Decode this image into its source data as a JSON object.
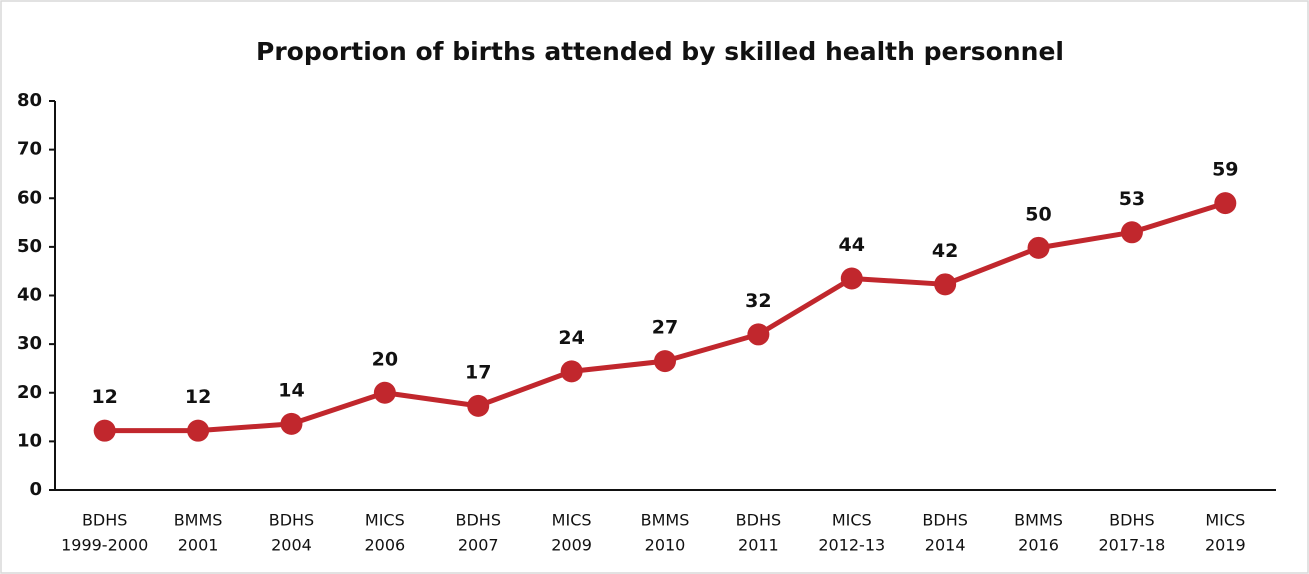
{
  "chart_data": {
    "type": "line",
    "title": "Proportion of births attended by skilled health personnel",
    "categories": [
      [
        "BDHS",
        "1999-2000"
      ],
      [
        "BMMS",
        "2001"
      ],
      [
        "BDHS",
        "2004"
      ],
      [
        "MICS",
        "2006"
      ],
      [
        "BDHS",
        "2007"
      ],
      [
        "MICS",
        "2009"
      ],
      [
        "BMMS",
        "2010"
      ],
      [
        "BDHS",
        "2011"
      ],
      [
        "MICS",
        "2012-13"
      ],
      [
        "BDHS",
        "2014"
      ],
      [
        "BMMS",
        "2016"
      ],
      [
        "BDHS",
        "2017-18"
      ],
      [
        "MICS",
        "2019"
      ]
    ],
    "series": [
      {
        "color": "#c1272d",
        "values": [
          12.2,
          12.2,
          13.6,
          20,
          17.3,
          24.4,
          26.5,
          32,
          43.5,
          42.3,
          49.8,
          53,
          59
        ],
        "value_labels": [
          "12",
          "12",
          "14",
          "20",
          "17",
          "24",
          "27",
          "32",
          "44",
          "42",
          "50",
          "53",
          "59"
        ]
      }
    ],
    "ylim": [
      0,
      80
    ],
    "yticks": [
      0,
      10,
      20,
      30,
      40,
      50,
      60,
      70,
      80
    ],
    "grid": false
  }
}
